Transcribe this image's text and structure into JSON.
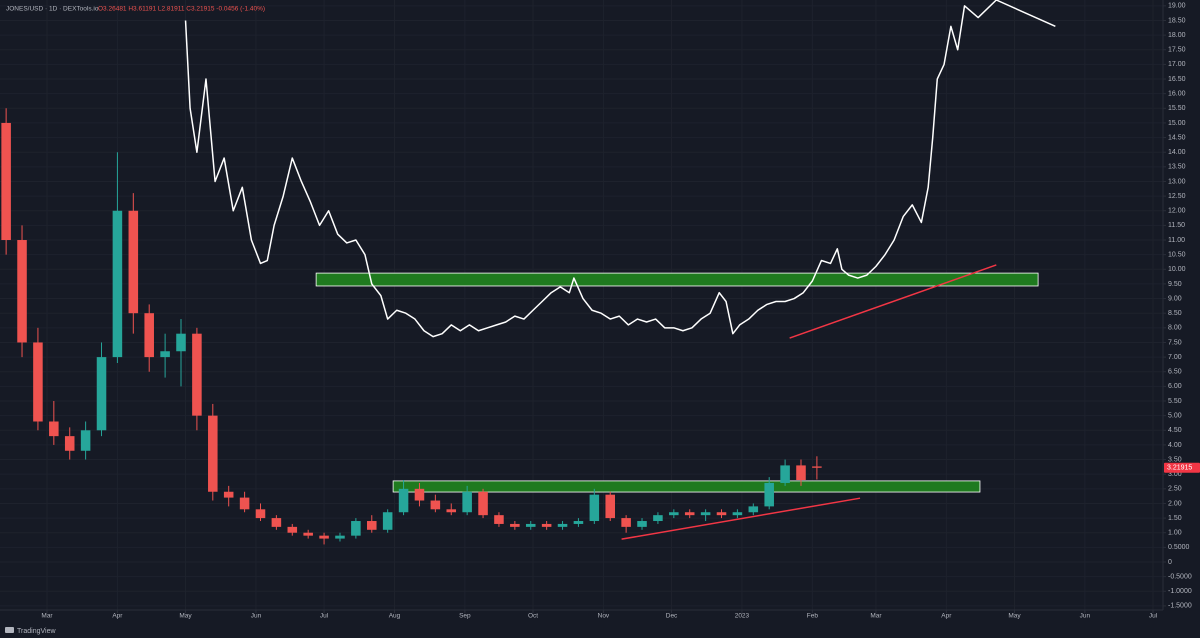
{
  "chart_data": {
    "type": "candlestick",
    "symbol": "JONES/USD · 1D · DEXTools.io",
    "ohlc_label": "O3.26481 H3.61191 L2.81911 C3.21915 -0.0456 (-1.40%)",
    "footer": "TradingView",
    "last_price": 3.21915,
    "last_price_color": "#f23645",
    "background": "#161a25",
    "grid": true,
    "xlim": [
      -20.7,
      491.4
    ],
    "ylim": [
      -1.64,
      19.2
    ],
    "xticks": [
      {
        "value": 0,
        "label": "Mar"
      },
      {
        "value": 31,
        "label": "Apr"
      },
      {
        "value": 61,
        "label": "May"
      },
      {
        "value": 92,
        "label": "Jun"
      },
      {
        "value": 122,
        "label": "Jul"
      },
      {
        "value": 153,
        "label": "Aug"
      },
      {
        "value": 184,
        "label": "Sep"
      },
      {
        "value": 214,
        "label": "Oct"
      },
      {
        "value": 245,
        "label": "Nov"
      },
      {
        "value": 275,
        "label": "Dec"
      },
      {
        "value": 306,
        "label": "2023"
      },
      {
        "value": 337,
        "label": "Feb"
      },
      {
        "value": 365,
        "label": "Mar"
      },
      {
        "value": 396,
        "label": "Apr"
      },
      {
        "value": 426,
        "label": "May"
      },
      {
        "value": 457,
        "label": "Jun"
      },
      {
        "value": 487,
        "label": "Jul"
      }
    ],
    "yticks": [
      {
        "value": 19,
        "label": "19.00"
      },
      {
        "value": 18.5,
        "label": "18.50"
      },
      {
        "value": 18,
        "label": "18.00"
      },
      {
        "value": 17.5,
        "label": "17.50"
      },
      {
        "value": 17,
        "label": "17.00"
      },
      {
        "value": 16.5,
        "label": "16.50"
      },
      {
        "value": 16,
        "label": "16.00"
      },
      {
        "value": 15.5,
        "label": "15.50"
      },
      {
        "value": 15,
        "label": "15.00"
      },
      {
        "value": 14.5,
        "label": "14.50"
      },
      {
        "value": 14,
        "label": "14.00"
      },
      {
        "value": 13.5,
        "label": "13.50"
      },
      {
        "value": 13,
        "label": "13.00"
      },
      {
        "value": 12.5,
        "label": "12.50"
      },
      {
        "value": 12,
        "label": "12.00"
      },
      {
        "value": 11.5,
        "label": "11.50"
      },
      {
        "value": 11,
        "label": "11.00"
      },
      {
        "value": 10.5,
        "label": "10.50"
      },
      {
        "value": 10,
        "label": "10.00"
      },
      {
        "value": 9.5,
        "label": "9.50"
      },
      {
        "value": 9,
        "label": "9.00"
      },
      {
        "value": 8.5,
        "label": "8.50"
      },
      {
        "value": 8,
        "label": "8.00"
      },
      {
        "value": 7.5,
        "label": "7.50"
      },
      {
        "value": 7,
        "label": "7.00"
      },
      {
        "value": 6.5,
        "label": "6.50"
      },
      {
        "value": 6,
        "label": "6.00"
      },
      {
        "value": 5.5,
        "label": "5.50"
      },
      {
        "value": 5,
        "label": "5.00"
      },
      {
        "value": 4.5,
        "label": "4.50"
      },
      {
        "value": 4,
        "label": "4.00"
      },
      {
        "value": 3.5,
        "label": "3.50"
      },
      {
        "value": 3,
        "label": "3.00"
      },
      {
        "value": 2.5,
        "label": "2.50"
      },
      {
        "value": 2,
        "label": "2.00"
      },
      {
        "value": 1.5,
        "label": "1.50"
      },
      {
        "value": 1,
        "label": "1.00"
      },
      {
        "value": 0.5,
        "label": "0.5000"
      },
      0,
      {
        "value": -0.5,
        "label": "-0.5000"
      },
      {
        "value": -1,
        "label": "-1.0000"
      },
      {
        "value": -1.5,
        "label": "-1.5000"
      }
    ],
    "up_color": "#26a69a",
    "down_color": "#ef5350",
    "x": [
      -18,
      -11,
      -4,
      3,
      10,
      17,
      24,
      31,
      38,
      45,
      52,
      59,
      66,
      73,
      80,
      87,
      94,
      101,
      108,
      115,
      122,
      129,
      136,
      143,
      150,
      157,
      164,
      171,
      178,
      185,
      192,
      199,
      206,
      213,
      220,
      227,
      234,
      241,
      248,
      255,
      262,
      269,
      276,
      283,
      290,
      297,
      304,
      311,
      318,
      325,
      332,
      339
    ],
    "open": [
      15.0,
      11.0,
      7.5,
      4.8,
      4.3,
      3.8,
      4.5,
      7.0,
      12.0,
      8.5,
      7.0,
      7.2,
      7.8,
      5.0,
      2.4,
      2.2,
      1.8,
      1.5,
      1.2,
      1.0,
      0.9,
      0.8,
      0.9,
      1.4,
      1.1,
      1.7,
      2.5,
      2.1,
      1.8,
      1.7,
      2.4,
      1.6,
      1.3,
      1.2,
      1.3,
      1.2,
      1.3,
      1.4,
      2.3,
      1.5,
      1.2,
      1.4,
      1.6,
      1.7,
      1.6,
      1.7,
      1.6,
      1.7,
      1.9,
      2.7,
      3.3,
      3.26481
    ],
    "high": [
      15.5,
      11.5,
      8.0,
      5.5,
      4.6,
      4.8,
      7.5,
      14.0,
      12.6,
      8.8,
      7.8,
      8.3,
      8.0,
      5.4,
      2.6,
      2.4,
      2.0,
      1.6,
      1.3,
      1.1,
      1.0,
      1.0,
      1.5,
      1.6,
      1.8,
      2.8,
      2.7,
      2.3,
      2.0,
      2.6,
      2.5,
      1.7,
      1.4,
      1.4,
      1.4,
      1.4,
      1.5,
      2.5,
      2.4,
      1.6,
      1.5,
      1.7,
      1.8,
      1.8,
      1.8,
      1.8,
      1.8,
      2.0,
      2.9,
      3.5,
      3.5,
      3.61191
    ],
    "low": [
      10.5,
      7.0,
      4.5,
      4.0,
      3.5,
      3.5,
      4.3,
      6.8,
      7.8,
      6.5,
      6.3,
      6.0,
      4.5,
      2.1,
      1.9,
      1.7,
      1.4,
      1.1,
      0.9,
      0.8,
      0.6,
      0.7,
      0.8,
      1.0,
      1.0,
      1.6,
      1.9,
      1.7,
      1.6,
      1.6,
      1.5,
      1.2,
      1.1,
      1.1,
      1.1,
      1.1,
      1.2,
      1.3,
      1.4,
      1.0,
      1.1,
      1.3,
      1.5,
      1.5,
      1.4,
      1.5,
      1.5,
      1.6,
      1.8,
      2.6,
      2.6,
      2.81911
    ],
    "close": [
      11.0,
      7.5,
      4.8,
      4.3,
      3.8,
      4.5,
      7.0,
      12.0,
      8.5,
      7.0,
      7.2,
      7.8,
      5.0,
      2.4,
      2.2,
      1.8,
      1.5,
      1.2,
      1.0,
      0.9,
      0.8,
      0.9,
      1.4,
      1.1,
      1.7,
      2.5,
      2.1,
      1.8,
      1.7,
      2.4,
      1.6,
      1.3,
      1.2,
      1.3,
      1.2,
      1.3,
      1.4,
      2.3,
      1.5,
      1.2,
      1.4,
      1.6,
      1.7,
      1.6,
      1.7,
      1.6,
      1.7,
      1.9,
      2.7,
      3.3,
      2.8,
      3.21915
    ],
    "line": {
      "type": "line",
      "color": "#ffffff",
      "x": [
        61,
        63,
        66,
        70,
        74,
        78,
        82,
        86,
        90,
        94,
        97,
        100,
        104,
        108,
        112,
        116,
        120,
        124,
        128,
        132,
        136,
        140,
        143,
        147,
        150,
        154,
        158,
        162,
        166,
        170,
        174,
        178,
        182,
        186,
        190,
        194,
        198,
        202,
        206,
        210,
        214,
        218,
        222,
        226,
        230,
        232,
        236,
        240,
        244,
        248,
        252,
        256,
        260,
        264,
        268,
        272,
        276,
        280,
        284,
        288,
        292,
        296,
        299,
        302,
        305,
        309,
        313,
        317,
        321,
        325,
        329,
        333,
        337,
        341,
        345,
        348,
        350,
        353,
        357,
        361,
        365,
        369,
        373,
        377,
        381,
        385,
        388,
        390,
        392,
        395,
        398,
        401,
        404,
        410,
        418,
        444
      ],
      "values": [
        18.5,
        15.5,
        14.0,
        16.5,
        13.0,
        13.8,
        12.0,
        12.8,
        11.0,
        10.2,
        10.3,
        11.5,
        12.5,
        13.8,
        13.0,
        12.3,
        11.5,
        12.0,
        11.2,
        10.9,
        11.0,
        10.5,
        9.5,
        9.1,
        8.3,
        8.6,
        8.5,
        8.3,
        7.9,
        7.7,
        7.8,
        8.1,
        7.9,
        8.1,
        7.9,
        8.0,
        8.1,
        8.2,
        8.4,
        8.3,
        8.6,
        8.9,
        9.2,
        9.4,
        9.2,
        9.7,
        9.0,
        8.6,
        8.5,
        8.3,
        8.4,
        8.1,
        8.3,
        8.2,
        8.3,
        8.0,
        8.0,
        7.9,
        8.0,
        8.3,
        8.5,
        9.2,
        8.9,
        7.8,
        8.1,
        8.3,
        8.6,
        8.8,
        8.9,
        8.9,
        9.0,
        9.2,
        9.6,
        10.3,
        10.2,
        10.7,
        10.0,
        9.8,
        9.7,
        9.8,
        10.1,
        10.5,
        11.0,
        11.8,
        12.2,
        11.6,
        12.8,
        14.5,
        16.5,
        17.0,
        18.3,
        17.5,
        19.0,
        18.6,
        19.2,
        18.3
      ]
    },
    "zones": [
      {
        "x": [
          118.5,
          436.4
        ],
        "y": [
          9.43,
          9.87
        ],
        "color": "#1f7a1f"
      },
      {
        "x": [
          152.4,
          410.8
        ],
        "y": [
          2.39,
          2.77
        ],
        "color": "#1f7a1f"
      }
    ],
    "trendlines": [
      {
        "x": [
          327,
          418
        ],
        "y": [
          7.65,
          10.15
        ],
        "color": "#f23645"
      },
      {
        "x": [
          253,
          358
        ],
        "y": [
          0.78,
          2.18
        ],
        "color": "#f23645"
      }
    ]
  }
}
